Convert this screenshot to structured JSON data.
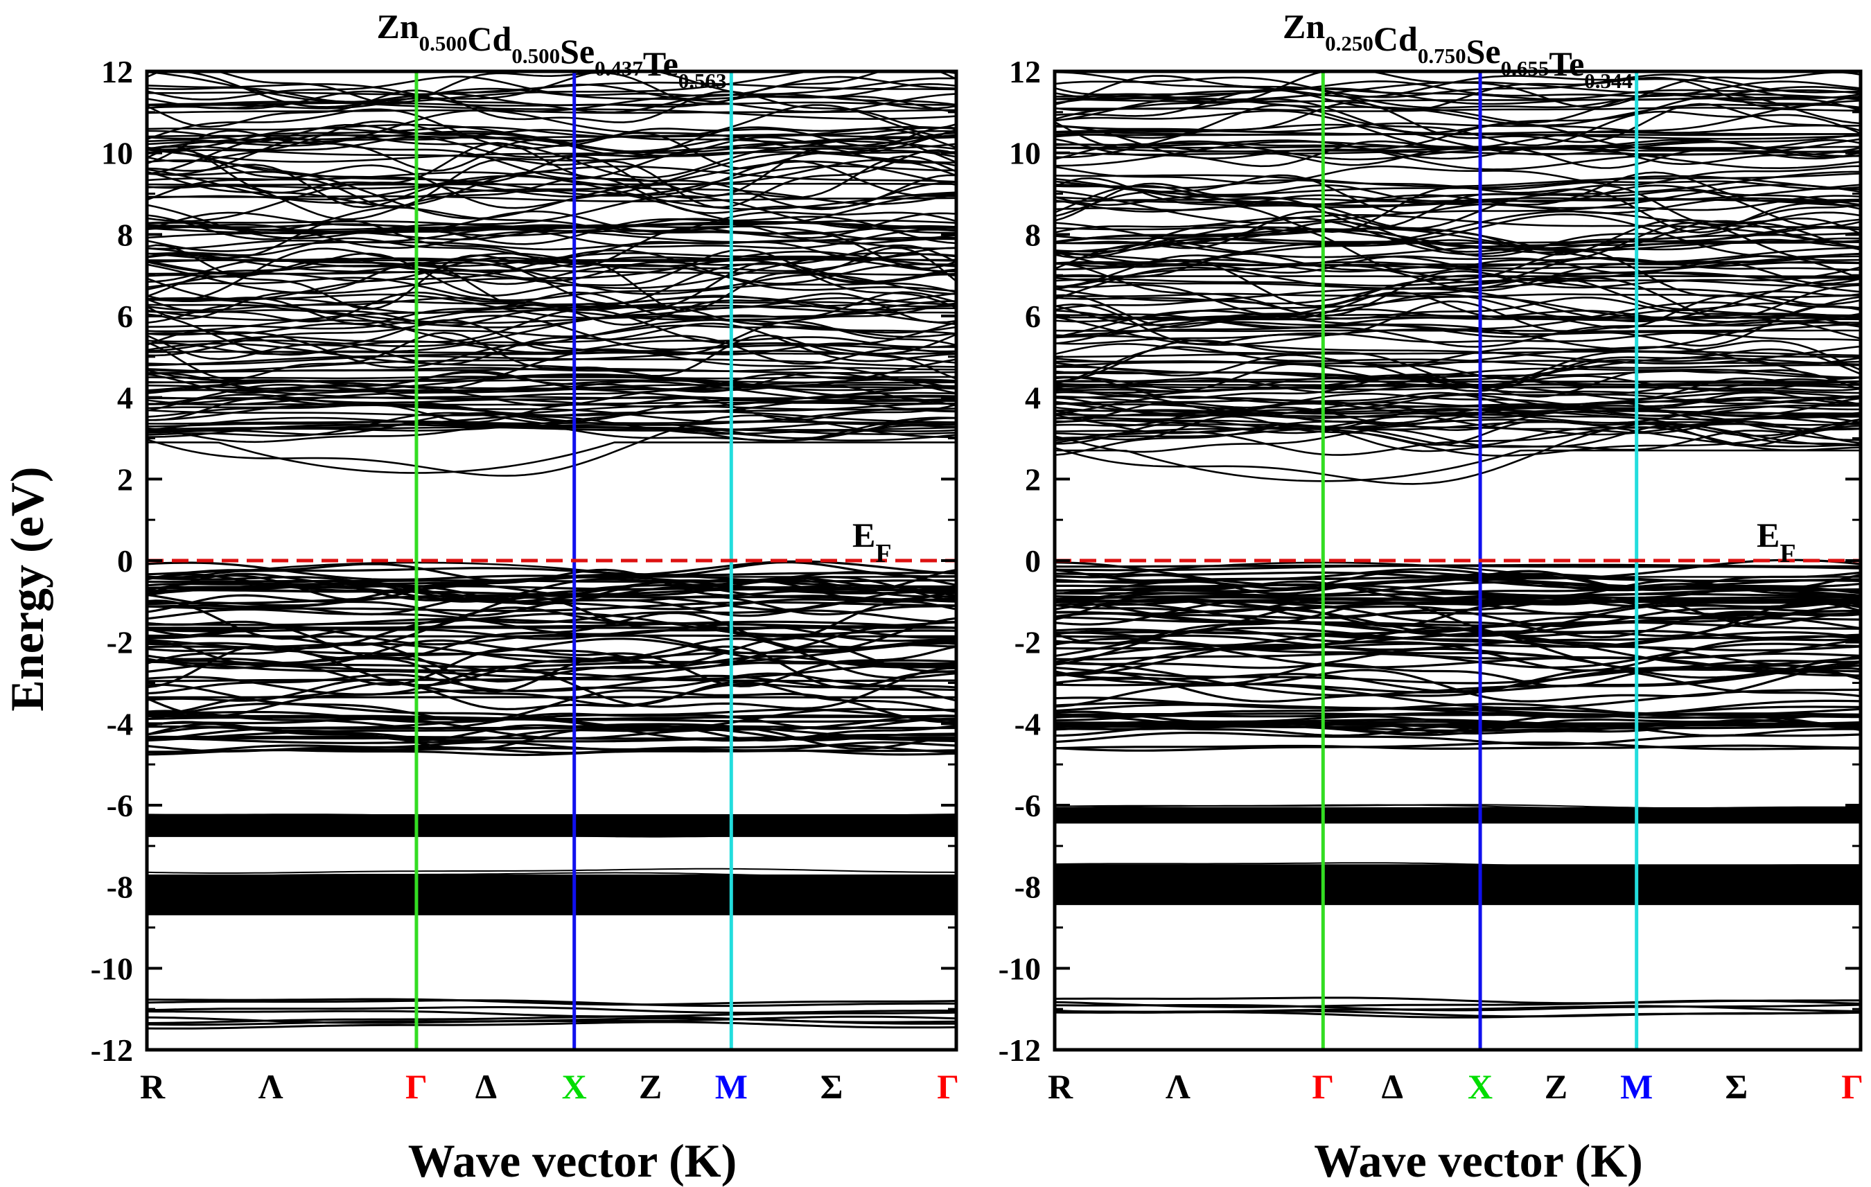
{
  "figure": {
    "ylabel": "Energy (eV)",
    "fermi_label_main": "E",
    "fermi_label_sub": "F"
  },
  "chart_data": [
    {
      "type": "line",
      "title_parts": [
        {
          "text": "Zn",
          "sub": "0.500"
        },
        {
          "text": "Cd",
          "sub": "0.500"
        },
        {
          "text": "Se",
          "sub": "0.437"
        },
        {
          "text": "Te",
          "sub": "0.563"
        }
      ],
      "xlabel": "Wave vector (K)",
      "ylabel": "Energy (eV)",
      "ylim": [
        -12,
        12
      ],
      "yticks": [
        12,
        10,
        8,
        6,
        4,
        2,
        0,
        -2,
        -4,
        -6,
        -8,
        -10,
        -12
      ],
      "k_points": [
        {
          "label": "R",
          "color": "#000000"
        },
        {
          "label": "Λ",
          "color": "#000000"
        },
        {
          "label": "Γ",
          "color": "#ff0000"
        },
        {
          "label": "Δ",
          "color": "#000000"
        },
        {
          "label": "X",
          "color": "#00dd00"
        },
        {
          "label": "Z",
          "color": "#000000"
        },
        {
          "label": "M",
          "color": "#0000ff"
        },
        {
          "label": "Σ",
          "color": "#000000"
        },
        {
          "label": "Γ",
          "color": "#ff0000"
        }
      ],
      "symmetry_lines": [
        {
          "at": "Γ",
          "color": "#33dd22"
        },
        {
          "at": "X",
          "color": "#1010ee"
        },
        {
          "at": "M",
          "color": "#22dddd"
        }
      ],
      "fermi_level": 0,
      "band_gap_conduction_min": 2.15,
      "bands": {
        "conduction": [
          {
            "center": 2.8,
            "amp": -0.65,
            "count": 1
          },
          {
            "center": 3.5,
            "amp": 0.3,
            "count": 16
          },
          {
            "center": 4.1,
            "amp": 0.25,
            "count": 18
          },
          {
            "center": 5.0,
            "amp": 0.5,
            "count": 14
          },
          {
            "center": 5.9,
            "amp": 0.45,
            "count": 16
          },
          {
            "center": 7.0,
            "amp": 0.6,
            "count": 18
          },
          {
            "center": 8.0,
            "amp": 0.5,
            "count": 16
          },
          {
            "center": 9.2,
            "amp": 0.55,
            "count": 16
          },
          {
            "center": 10.3,
            "amp": 0.5,
            "count": 16
          },
          {
            "center": 11.3,
            "amp": 0.4,
            "count": 14
          }
        ],
        "valence": [
          {
            "center": -0.4,
            "amp": 0.35,
            "count": 10
          },
          {
            "center": -0.9,
            "amp": 0.25,
            "count": 12
          },
          {
            "center": -1.6,
            "amp": 0.45,
            "count": 12
          },
          {
            "center": -2.4,
            "amp": 0.5,
            "count": 12
          },
          {
            "center": -3.2,
            "amp": 0.5,
            "count": 8
          },
          {
            "center": -4.1,
            "amp": 0.25,
            "count": 14
          },
          {
            "center": -4.5,
            "amp": 0.15,
            "count": 6
          }
        ],
        "d_bands": [
          {
            "center": -6.5,
            "half_width": 0.28
          },
          {
            "center": -8.2,
            "half_width": 0.5
          }
        ],
        "deep": {
          "center": -11.0,
          "half_width": 0.4,
          "count": 8
        }
      }
    },
    {
      "type": "line",
      "title_parts": [
        {
          "text": "Zn",
          "sub": "0.250"
        },
        {
          "text": "Cd",
          "sub": "0.750"
        },
        {
          "text": "Se",
          "sub": "0.655"
        },
        {
          "text": "Te",
          "sub": "0.344"
        }
      ],
      "xlabel": "Wave vector (K)",
      "ylabel": "Energy (eV)",
      "ylim": [
        -12,
        12
      ],
      "yticks": [
        12,
        10,
        8,
        6,
        4,
        2,
        0,
        -2,
        -4,
        -6,
        -8,
        -10,
        -12
      ],
      "k_points": [
        {
          "label": "R",
          "color": "#000000"
        },
        {
          "label": "Λ",
          "color": "#000000"
        },
        {
          "label": "Γ",
          "color": "#ff0000"
        },
        {
          "label": "Δ",
          "color": "#000000"
        },
        {
          "label": "X",
          "color": "#00dd00"
        },
        {
          "label": "Z",
          "color": "#000000"
        },
        {
          "label": "M",
          "color": "#0000ff"
        },
        {
          "label": "Σ",
          "color": "#000000"
        },
        {
          "label": "Γ",
          "color": "#ff0000"
        }
      ],
      "symmetry_lines": [
        {
          "at": "Γ",
          "color": "#33dd22"
        },
        {
          "at": "X",
          "color": "#1010ee"
        },
        {
          "at": "M",
          "color": "#22dddd"
        }
      ],
      "fermi_level": 0,
      "band_gap_conduction_min": 1.95,
      "bands": {
        "conduction": [
          {
            "center": 2.6,
            "amp": -0.65,
            "count": 1
          },
          {
            "center": 3.3,
            "amp": 0.3,
            "count": 16
          },
          {
            "center": 4.0,
            "amp": 0.25,
            "count": 20
          },
          {
            "center": 4.8,
            "amp": 0.45,
            "count": 14
          },
          {
            "center": 5.8,
            "amp": 0.45,
            "count": 16
          },
          {
            "center": 6.9,
            "amp": 0.55,
            "count": 18
          },
          {
            "center": 7.9,
            "amp": 0.5,
            "count": 16
          },
          {
            "center": 9.1,
            "amp": 0.5,
            "count": 16
          },
          {
            "center": 10.3,
            "amp": 0.5,
            "count": 18
          },
          {
            "center": 11.3,
            "amp": 0.4,
            "count": 14
          }
        ],
        "valence": [
          {
            "center": -0.35,
            "amp": 0.3,
            "count": 10
          },
          {
            "center": -0.9,
            "amp": 0.2,
            "count": 14
          },
          {
            "center": -1.5,
            "amp": 0.4,
            "count": 12
          },
          {
            "center": -2.2,
            "amp": 0.45,
            "count": 12
          },
          {
            "center": -3.0,
            "amp": 0.45,
            "count": 8
          },
          {
            "center": -3.9,
            "amp": 0.2,
            "count": 16
          },
          {
            "center": -4.3,
            "amp": 0.12,
            "count": 6
          }
        ],
        "d_bands": [
          {
            "center": -6.25,
            "half_width": 0.2
          },
          {
            "center": -7.95,
            "half_width": 0.5
          }
        ],
        "deep": {
          "center": -10.95,
          "half_width": 0.2,
          "count": 6
        }
      }
    }
  ]
}
